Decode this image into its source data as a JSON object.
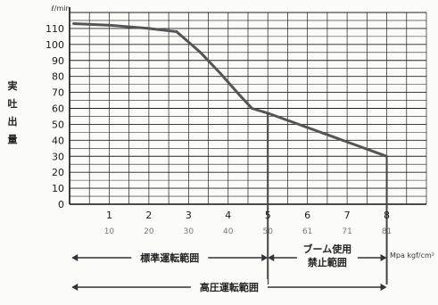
{
  "chart_data": {
    "type": "line",
    "title": "",
    "xlabel": "",
    "ylabel": "実吐出量",
    "y_unit": "ℓ/min",
    "x_unit": "Mpa kgf/cm²",
    "x_ticks": [
      "1",
      "2",
      "3",
      "4",
      "5",
      "6",
      "7",
      "8"
    ],
    "x_ticks_secondary": [
      "10",
      "20",
      "30",
      "40",
      "50",
      "61",
      "71",
      "81"
    ],
    "y_ticks": [
      "0",
      "10",
      "20",
      "30",
      "40",
      "50",
      "60",
      "70",
      "80",
      "90",
      "100",
      "110"
    ],
    "xlim": [
      0,
      9
    ],
    "ylim": [
      0,
      120
    ],
    "grid": true,
    "series": [
      {
        "x": [
          0.1,
          1.0,
          2.0,
          2.7,
          3.3,
          3.8,
          4.3,
          4.6,
          5.0,
          6.0,
          7.0,
          8.0
        ],
        "values": [
          113,
          112,
          110,
          108,
          95,
          82,
          68,
          60,
          57,
          48,
          39,
          30
        ]
      }
    ],
    "ranges": [
      {
        "label": "標準運転範囲",
        "from": 0.05,
        "to": 5.0
      },
      {
        "label": "ブーム使用\n禁止範囲",
        "from": 5.0,
        "to": 8.0
      },
      {
        "label": "高圧運転範囲",
        "from": 0.05,
        "to": 8.0
      }
    ],
    "annotations": [
      {
        "type": "vline",
        "x": 5.0,
        "y_top": 57
      },
      {
        "type": "vline",
        "x": 8.0,
        "y_top": 30
      }
    ]
  }
}
